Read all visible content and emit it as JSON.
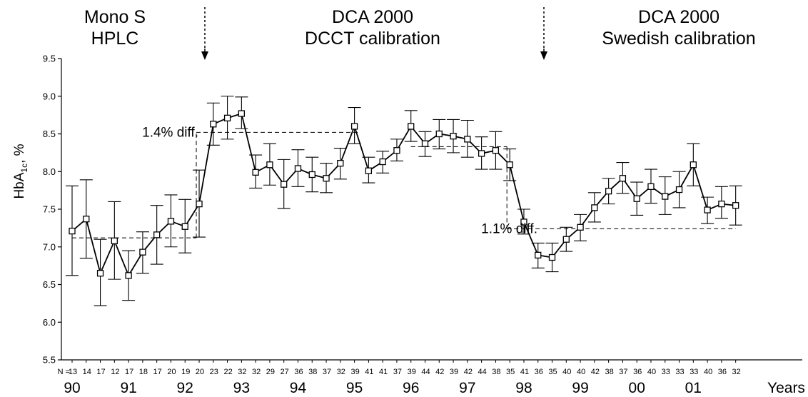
{
  "chart_data": {
    "type": "line",
    "ylabel_main": "HbA",
    "ylabel_sub": "1c",
    "ylabel_tail": ", %",
    "ylim": [
      5.5,
      9.5
    ],
    "yticks": [
      "5.5",
      "6.0",
      "6.5",
      "7.0",
      "7.5",
      "8.0",
      "8.5",
      "9.0",
      "9.5"
    ],
    "n_prefix": "N =",
    "n_values": [
      "13",
      "14",
      "17",
      "12",
      "17",
      "18",
      "17",
      "20",
      "19",
      "20",
      "23",
      "22",
      "32",
      "32",
      "29",
      "27",
      "36",
      "38",
      "37",
      "32",
      "39",
      "41",
      "41",
      "37",
      "39",
      "44",
      "42",
      "39",
      "42",
      "44",
      "38",
      "35",
      "41",
      "36",
      "35",
      "40",
      "40",
      "42",
      "38",
      "37",
      "36",
      "40",
      "33",
      "33",
      "33",
      "40",
      "36",
      "32"
    ],
    "year_labels": [
      "90",
      "91",
      "92",
      "93",
      "94",
      "95",
      "96",
      "97",
      "98",
      "99",
      "00",
      "01"
    ],
    "years_label": "Years",
    "periods": [
      {
        "line1": "Mono S",
        "line2": "HPLC"
      },
      {
        "line1": "DCA 2000",
        "line2": "DCCT calibration"
      },
      {
        "line1": "DCA 2000",
        "line2": "Swedish calibration"
      }
    ],
    "annotations": [
      {
        "text": "1.4% diff.",
        "from": 7.12,
        "to": 8.52
      },
      {
        "text": "1.1% diff.",
        "from": 8.33,
        "to": 7.24
      }
    ],
    "series": [
      {
        "mean": [
          7.21,
          7.37,
          6.65,
          7.08,
          6.62,
          6.93,
          7.16,
          7.34,
          7.27,
          7.57,
          8.63,
          8.71,
          8.77,
          7.99,
          8.09,
          7.83,
          8.04,
          7.96,
          7.91,
          8.11,
          8.6,
          8.01,
          8.13,
          8.28,
          8.6,
          8.37,
          8.5,
          8.47,
          8.43,
          8.24,
          8.28,
          8.09,
          7.33,
          6.89,
          6.86,
          7.1,
          7.26,
          7.52,
          7.74,
          7.91,
          7.64,
          7.8,
          7.67,
          7.76,
          8.09,
          7.49,
          7.57,
          7.55
        ],
        "upper": [
          7.81,
          7.89,
          7.1,
          7.6,
          6.95,
          7.2,
          7.55,
          7.69,
          7.63,
          8.02,
          8.91,
          9.0,
          8.99,
          8.22,
          8.37,
          8.16,
          8.29,
          8.19,
          8.11,
          8.31,
          8.85,
          8.19,
          8.27,
          8.43,
          8.81,
          8.53,
          8.69,
          8.69,
          8.68,
          8.46,
          8.53,
          8.3,
          7.5,
          7.05,
          7.05,
          7.26,
          7.43,
          7.72,
          7.91,
          8.12,
          7.86,
          8.03,
          7.93,
          8.0,
          8.37,
          7.66,
          7.8,
          7.81
        ],
        "lower": [
          6.62,
          6.85,
          6.22,
          6.57,
          6.29,
          6.65,
          6.77,
          7.0,
          6.92,
          7.13,
          8.35,
          8.43,
          8.57,
          7.78,
          7.82,
          7.51,
          7.8,
          7.73,
          7.72,
          7.9,
          8.37,
          7.85,
          7.98,
          8.14,
          8.4,
          8.2,
          8.3,
          8.25,
          8.19,
          8.03,
          8.03,
          7.88,
          7.17,
          6.72,
          6.67,
          6.94,
          7.08,
          7.33,
          7.57,
          7.71,
          7.42,
          7.58,
          7.43,
          7.52,
          7.81,
          7.31,
          7.38,
          7.29
        ]
      }
    ]
  }
}
